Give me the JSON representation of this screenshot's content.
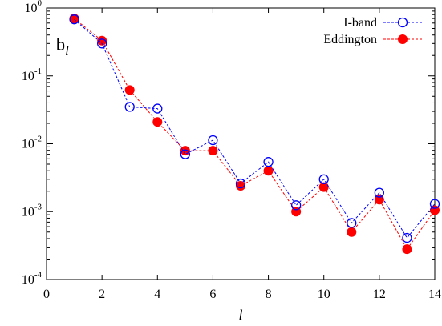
{
  "chart_data": {
    "type": "line",
    "xlabel": "l",
    "ylabel": "",
    "panel_label": {
      "main": "b",
      "sub": "l"
    },
    "xlim": [
      0,
      14
    ],
    "ylim": [
      0.0001,
      1
    ],
    "yscale": "log",
    "xticks": [
      0,
      2,
      4,
      6,
      8,
      10,
      12,
      14
    ],
    "xtick_labels": [
      "0",
      "2",
      "4",
      "6",
      "8",
      "10",
      "12",
      "14"
    ],
    "yticks": [
      0.0001,
      0.001,
      0.01,
      0.1,
      1
    ],
    "ytick_labels": [
      {
        "base": "10",
        "exp": "-4"
      },
      {
        "base": "10",
        "exp": "-3"
      },
      {
        "base": "10",
        "exp": "-2"
      },
      {
        "base": "10",
        "exp": "-1"
      },
      {
        "base": "10",
        "exp": "0"
      }
    ],
    "grid": false,
    "legend_position": "top-right",
    "series": [
      {
        "name": "I-band",
        "color": "#0000ff",
        "marker": "open-circle",
        "line": "dashed",
        "x": [
          1,
          2,
          3,
          4,
          5,
          6,
          7,
          8,
          9,
          10,
          11,
          12,
          13,
          14
        ],
        "values": [
          0.68,
          0.3,
          0.035,
          0.033,
          0.007,
          0.0113,
          0.0026,
          0.0054,
          0.00124,
          0.003,
          0.00068,
          0.0019,
          0.00041,
          0.0013
        ]
      },
      {
        "name": "Eddington",
        "color": "#ff0000",
        "marker": "filled-circle",
        "line": "dashed",
        "x": [
          1,
          2,
          3,
          4,
          5,
          6,
          7,
          8,
          9,
          10,
          11,
          12,
          13,
          14
        ],
        "values": [
          0.7,
          0.33,
          0.062,
          0.021,
          0.0079,
          0.0079,
          0.0024,
          0.004,
          0.001,
          0.0023,
          0.0005,
          0.0015,
          0.00028,
          0.00105
        ]
      }
    ]
  }
}
